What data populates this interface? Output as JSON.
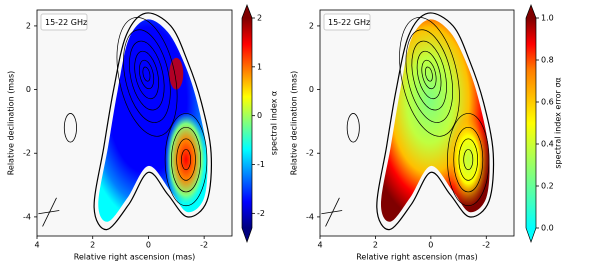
{
  "chart_data": [
    {
      "type": "image",
      "annotation": "15-22 GHz",
      "x_label": "Relative right ascension (mas)",
      "y_label": "Relative declination (mas)",
      "xlim": [
        4,
        -3
      ],
      "ylim": [
        -4.6,
        2.5
      ],
      "xticks": [
        4,
        2,
        0,
        -2
      ],
      "yticks": [
        2,
        0,
        -2,
        -4
      ],
      "colorbar_label": "spectral index α",
      "clim": [
        -2.3,
        2
      ],
      "cticks": [
        -2,
        -1,
        0,
        1,
        2
      ],
      "colormap": [
        "#00007f",
        "#0000ff",
        "#007fff",
        "#00ffff",
        "#7fff7f",
        "#ffff00",
        "#ff7f00",
        "#ff0000",
        "#7f0000"
      ]
    },
    {
      "type": "image",
      "annotation": "15-22 GHz",
      "x_label": "Relative right ascension (mas)",
      "y_label": "Relative declination (mas)",
      "xlim": [
        4,
        -3
      ],
      "ylim": [
        -4.6,
        2.5
      ],
      "xticks": [
        4,
        2,
        0,
        -2
      ],
      "yticks": [
        2,
        0,
        -2,
        -4
      ],
      "colorbar_label": "spectral index error σα",
      "clim": [
        0,
        1
      ],
      "cticks": [
        {
          "value": 0,
          "label": "0.0"
        },
        {
          "value": 0.2,
          "label": "0.2"
        },
        {
          "value": 0.4,
          "label": "0.4"
        },
        {
          "value": 0.6,
          "label": "0.6"
        },
        {
          "value": 0.8,
          "label": "0.8"
        },
        {
          "value": 1,
          "label": "1.0"
        }
      ],
      "colormap": [
        "#00ffff",
        "#40ffbf",
        "#7fff7f",
        "#bfff40",
        "#ffff00",
        "#ffbf00",
        "#ff7f00",
        "#ff0000",
        "#7f0000"
      ]
    }
  ]
}
